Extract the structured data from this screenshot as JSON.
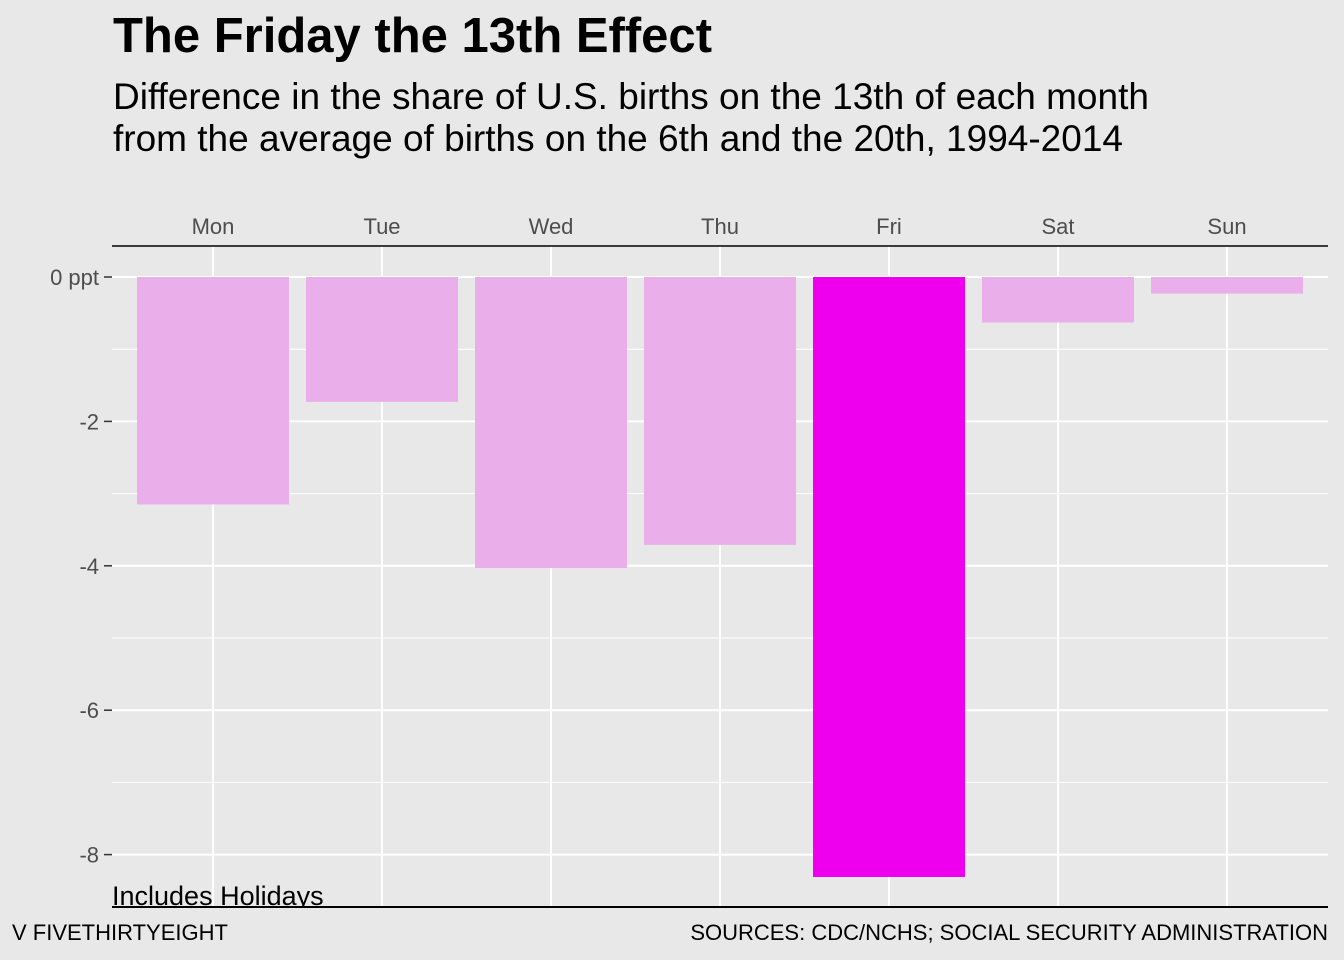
{
  "chart_data": {
    "type": "bar",
    "title": "The Friday the 13th Effect",
    "subtitle_lines": [
      "Difference in the share of U.S. births on the 13th of each month",
      "from the average of births on the 6th and the 20th, 1994-2014"
    ],
    "categories": [
      "Mon",
      "Tue",
      "Wed",
      "Thu",
      "Fri",
      "Sat",
      "Sun"
    ],
    "values": [
      -3.15,
      -1.73,
      -4.03,
      -3.71,
      -8.31,
      -0.63,
      -0.23
    ],
    "highlight_category": "Fri",
    "ylim": [
      -8.6,
      0.35
    ],
    "y_ticks": [
      0,
      -2,
      -4,
      -6,
      -8
    ],
    "y_tick_labels": [
      "0 ppt",
      "-2",
      "-4",
      "-6",
      "-8"
    ],
    "x_axis_position": "top",
    "grid": true,
    "colors": {
      "bar": "#eaaeea",
      "highlight_bar": "#ee00ee",
      "grid": "#ffffff",
      "background": "#e8e8e8"
    },
    "annotation": "Includes Holidays"
  },
  "footer": {
    "left": "V FIVETHIRTYEIGHT",
    "right": "SOURCES: CDC/NCHS; SOCIAL SECURITY ADMINISTRATION"
  }
}
